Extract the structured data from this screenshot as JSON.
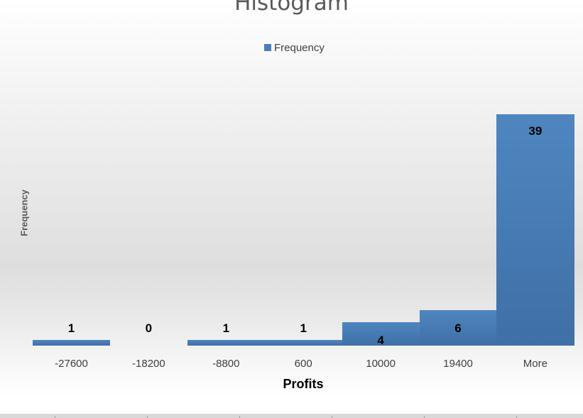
{
  "chart": {
    "title": "Histogram",
    "legend_label": "Frequency",
    "ylabel": "Frequency",
    "xlabel": "Profits",
    "bar_color": "#4a7ebb"
  },
  "chart_data": {
    "type": "bar",
    "title": "Histogram",
    "xlabel": "Profits",
    "ylabel": "Frequency",
    "categories": [
      "-27600",
      "-18200",
      "-8800",
      "600",
      "10000",
      "19400",
      "More"
    ],
    "series": [
      {
        "name": "Frequency",
        "values": [
          1,
          0,
          1,
          1,
          4,
          6,
          39
        ]
      }
    ],
    "data_labels": true,
    "legend_position": "top",
    "grid": false,
    "ylim": [
      0,
      39
    ]
  }
}
